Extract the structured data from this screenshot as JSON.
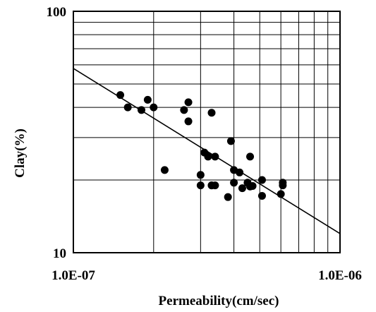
{
  "chart_data": {
    "type": "scatter",
    "title": "",
    "xlabel": "Permeability(cm/sec)",
    "ylabel": "Clay(%)",
    "x_scale": "log",
    "y_scale": "log",
    "xlim": [
      1e-07,
      1e-06
    ],
    "ylim": [
      10,
      100
    ],
    "x_ticks": [
      1e-07,
      1e-06
    ],
    "x_tick_labels": [
      "1.0E-07",
      "1.0E-06"
    ],
    "y_ticks": [
      10,
      100
    ],
    "y_tick_labels": [
      "10",
      "100"
    ],
    "grid": true,
    "legend": "none",
    "colors": {
      "points": "#000000",
      "trendline": "#000000",
      "grid": "#000000"
    },
    "series": [
      {
        "x": [
          1.5e-07,
          1.6e-07,
          1.8e-07,
          1.9e-07,
          2e-07,
          2.2e-07,
          2.6e-07,
          2.7e-07,
          2.7e-07,
          3e-07,
          3e-07,
          3.1e-07,
          3.2e-07,
          3.3e-07,
          3.3e-07,
          3.3e-07,
          3.4e-07,
          3.4e-07,
          3.8e-07,
          3.9e-07,
          4e-07,
          4e-07,
          4.2e-07,
          4.3e-07,
          4.5e-07,
          4.6e-07,
          4.6e-07,
          4.7e-07,
          5.1e-07,
          5.1e-07,
          6e-07,
          6.1e-07,
          6.1e-07
        ],
        "y": [
          45,
          40,
          39,
          43,
          40,
          22,
          39,
          42,
          35,
          21,
          19,
          26,
          25,
          38,
          19,
          19,
          25,
          19,
          17,
          29,
          22,
          19.5,
          21.5,
          18.5,
          19.5,
          18.8,
          25,
          18.9,
          20,
          17.2,
          17.5,
          19,
          19.5
        ]
      }
    ],
    "trendline": {
      "x": [
        1e-07,
        1e-06
      ],
      "y": [
        58,
        12
      ]
    }
  }
}
